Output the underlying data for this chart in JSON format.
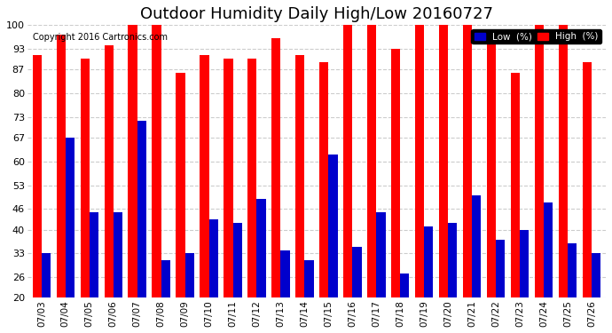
{
  "title": "Outdoor Humidity Daily High/Low 20160727",
  "copyright": "Copyright 2016 Cartronics.com",
  "dates": [
    "07/03",
    "07/04",
    "07/05",
    "07/06",
    "07/07",
    "07/08",
    "07/09",
    "07/10",
    "07/11",
    "07/12",
    "07/13",
    "07/14",
    "07/15",
    "07/16",
    "07/17",
    "07/18",
    "07/19",
    "07/20",
    "07/21",
    "07/22",
    "07/23",
    "07/24",
    "07/25",
    "07/26"
  ],
  "high": [
    91,
    97,
    90,
    94,
    100,
    100,
    86,
    91,
    90,
    90,
    96,
    91,
    89,
    100,
    100,
    93,
    100,
    100,
    100,
    97,
    86,
    100,
    100,
    89
  ],
  "low": [
    33,
    67,
    45,
    45,
    72,
    31,
    33,
    43,
    42,
    49,
    34,
    31,
    62,
    35,
    45,
    27,
    41,
    42,
    50,
    37,
    40,
    48,
    36,
    33
  ],
  "ylim": [
    20,
    100
  ],
  "yticks": [
    20,
    26,
    33,
    40,
    46,
    53,
    60,
    67,
    73,
    80,
    87,
    93,
    100
  ],
  "bar_width": 0.38,
  "high_color": "#ff0000",
  "low_color": "#0000cc",
  "bg_color": "#ffffff",
  "grid_color": "#cccccc",
  "title_fontsize": 13,
  "legend_low_label": "Low  (%)",
  "legend_high_label": "High  (%)"
}
